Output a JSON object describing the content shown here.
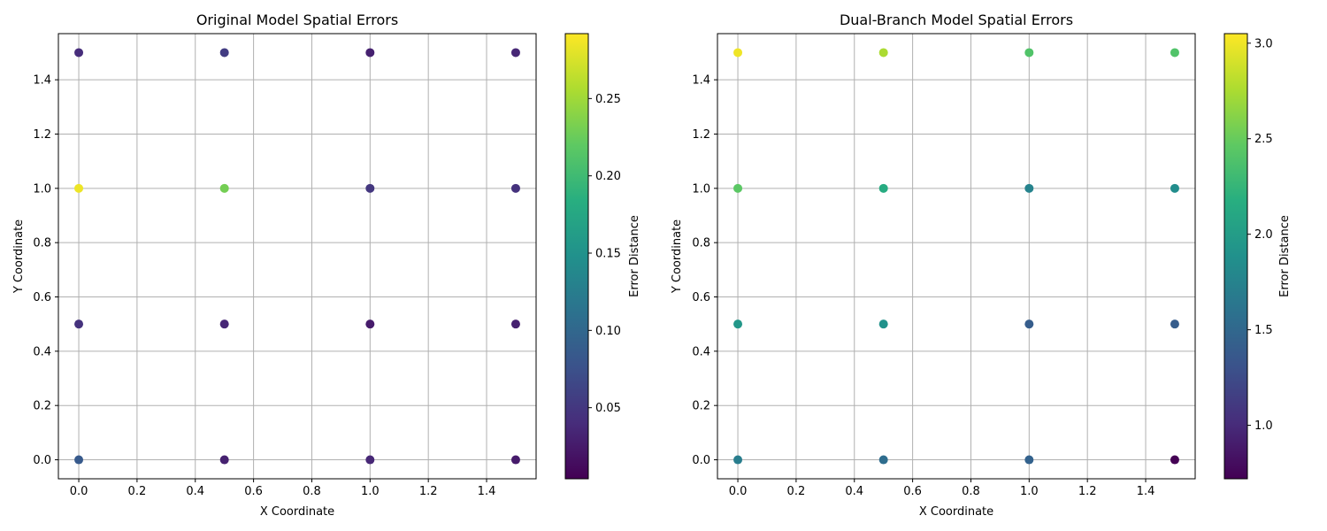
{
  "chart_data": [
    {
      "type": "scatter",
      "title": "Original Model Spatial Errors",
      "xlabel": "X Coordinate",
      "ylabel": "Y Coordinate",
      "xlim": [
        -0.07,
        1.57
      ],
      "ylim": [
        -0.07,
        1.57
      ],
      "xticks": [
        "0.0",
        "0.2",
        "0.4",
        "0.6",
        "0.8",
        "1.0",
        "1.2",
        "1.4"
      ],
      "yticks": [
        "0.0",
        "0.2",
        "0.4",
        "0.6",
        "0.8",
        "1.0",
        "1.2",
        "1.4"
      ],
      "grid": true,
      "colormap": "viridis",
      "colorbar": {
        "label": "Error Distance",
        "range": [
          0.004,
          0.292
        ],
        "ticks": [
          "0.05",
          "0.10",
          "0.15",
          "0.20",
          "0.25"
        ]
      },
      "points": [
        {
          "x": 0.0,
          "y": 1.5,
          "error": 0.04
        },
        {
          "x": 0.5,
          "y": 1.5,
          "error": 0.055
        },
        {
          "x": 1.0,
          "y": 1.5,
          "error": 0.03
        },
        {
          "x": 1.5,
          "y": 1.5,
          "error": 0.035
        },
        {
          "x": 0.0,
          "y": 1.0,
          "error": 0.285
        },
        {
          "x": 0.5,
          "y": 1.0,
          "error": 0.23
        },
        {
          "x": 1.0,
          "y": 1.0,
          "error": 0.05
        },
        {
          "x": 1.5,
          "y": 1.0,
          "error": 0.045
        },
        {
          "x": 0.0,
          "y": 0.5,
          "error": 0.045
        },
        {
          "x": 0.5,
          "y": 0.5,
          "error": 0.035
        },
        {
          "x": 1.0,
          "y": 0.5,
          "error": 0.025
        },
        {
          "x": 1.5,
          "y": 0.5,
          "error": 0.03
        },
        {
          "x": 0.0,
          "y": 0.0,
          "error": 0.085
        },
        {
          "x": 0.5,
          "y": 0.0,
          "error": 0.03
        },
        {
          "x": 1.0,
          "y": 0.0,
          "error": 0.035
        },
        {
          "x": 1.5,
          "y": 0.0,
          "error": 0.025
        }
      ]
    },
    {
      "type": "scatter",
      "title": "Dual-Branch Model Spatial Errors",
      "xlabel": "X Coordinate",
      "ylabel": "Y Coordinate",
      "xlim": [
        -0.07,
        1.57
      ],
      "ylim": [
        -0.07,
        1.57
      ],
      "xticks": [
        "0.0",
        "0.2",
        "0.4",
        "0.6",
        "0.8",
        "1.0",
        "1.2",
        "1.4"
      ],
      "yticks": [
        "0.0",
        "0.2",
        "0.4",
        "0.6",
        "0.8",
        "1.0",
        "1.2",
        "1.4"
      ],
      "grid": true,
      "colormap": "viridis",
      "colorbar": {
        "label": "Error Distance",
        "range": [
          0.72,
          3.05
        ],
        "ticks": [
          "1.0",
          "1.5",
          "2.0",
          "2.5",
          "3.0"
        ]
      },
      "points": [
        {
          "x": 0.0,
          "y": 1.5,
          "error": 3.0
        },
        {
          "x": 0.5,
          "y": 1.5,
          "error": 2.75
        },
        {
          "x": 1.0,
          "y": 1.5,
          "error": 2.4
        },
        {
          "x": 1.5,
          "y": 1.5,
          "error": 2.4
        },
        {
          "x": 0.0,
          "y": 1.0,
          "error": 2.45
        },
        {
          "x": 0.5,
          "y": 1.0,
          "error": 2.15
        },
        {
          "x": 1.0,
          "y": 1.0,
          "error": 1.75
        },
        {
          "x": 1.5,
          "y": 1.0,
          "error": 1.85
        },
        {
          "x": 0.0,
          "y": 0.5,
          "error": 1.95
        },
        {
          "x": 0.5,
          "y": 0.5,
          "error": 1.9
        },
        {
          "x": 1.0,
          "y": 0.5,
          "error": 1.4
        },
        {
          "x": 1.5,
          "y": 0.5,
          "error": 1.4
        },
        {
          "x": 0.0,
          "y": 0.0,
          "error": 1.7
        },
        {
          "x": 0.5,
          "y": 0.0,
          "error": 1.55
        },
        {
          "x": 1.0,
          "y": 0.0,
          "error": 1.45
        },
        {
          "x": 1.5,
          "y": 0.0,
          "error": 0.72
        }
      ]
    }
  ]
}
